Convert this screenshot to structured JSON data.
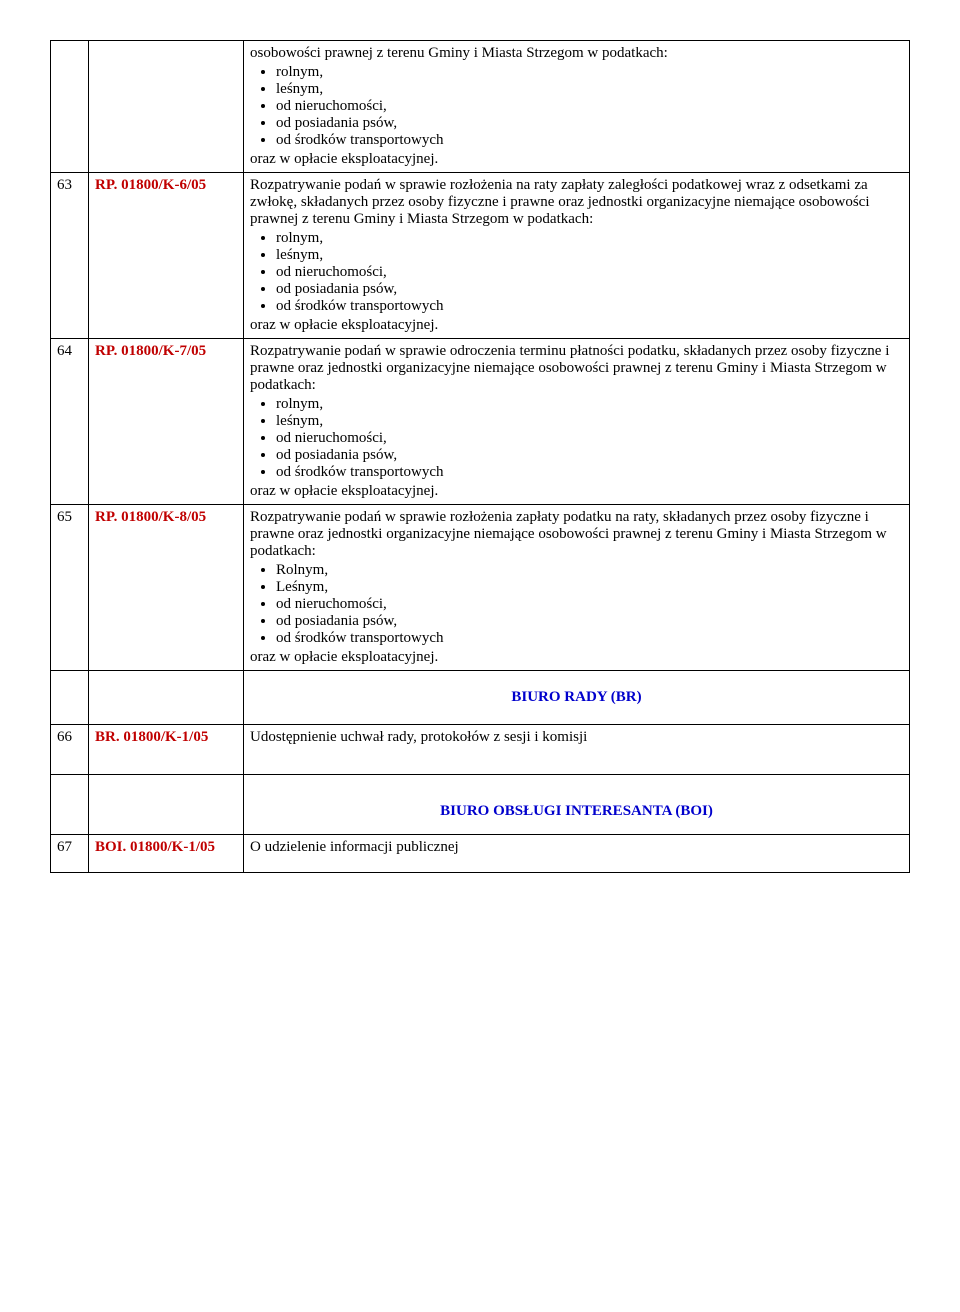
{
  "rows": [
    {
      "num": "",
      "code": "",
      "intro": "osobowości prawnej z terenu Gminy i Miasta Strzegom w podatkach:",
      "bullets": [
        "rolnym,",
        "leśnym,",
        "od nieruchomości,",
        "od posiadania psów,",
        "od środków transportowych"
      ],
      "outro": "oraz w opłacie eksploatacyjnej."
    },
    {
      "num": "63",
      "code": "RP. 01800/K-6/05",
      "intro": "Rozpatrywanie podań w sprawie rozłożenia na raty zapłaty zaległości podatkowej wraz z odsetkami za zwłokę, składanych przez osoby fizyczne i prawne oraz jednostki organizacyjne niemające osobowości prawnej z terenu Gminy i Miasta Strzegom w podatkach:",
      "bullets": [
        "rolnym,",
        "leśnym,",
        "od nieruchomości,",
        "od posiadania psów,",
        "od środków transportowych"
      ],
      "outro": "oraz w opłacie eksploatacyjnej."
    },
    {
      "num": "64",
      "code": "RP. 01800/K-7/05",
      "intro": "Rozpatrywanie podań w sprawie odroczenia terminu płatności podatku, składanych przez osoby fizyczne i prawne oraz jednostki organizacyjne niemające osobowości prawnej z terenu Gminy i Miasta Strzegom w podatkach:",
      "bullets": [
        "rolnym,",
        "leśnym,",
        "od nieruchomości,",
        "od posiadania psów,",
        "od środków transportowych"
      ],
      "outro": "oraz w opłacie eksploatacyjnej."
    },
    {
      "num": "65",
      "code": "RP. 01800/K-8/05",
      "intro": "Rozpatrywanie podań w sprawie rozłożenia zapłaty podatku na raty, składanych przez osoby fizyczne i prawne oraz jednostki organizacyjne niemające osobowości prawnej z terenu Gminy i Miasta Strzegom w podatkach:",
      "bullets": [
        "Rolnym,",
        "Leśnym,",
        "od nieruchomości,",
        "od posiadania psów,",
        "od środków transportowych"
      ],
      "outro": "oraz w opłacie eksploatacyjnej."
    }
  ],
  "section1": {
    "title": "BIURO RADY (BR)"
  },
  "row66": {
    "num": "66",
    "code": "BR. 01800/K-1/05",
    "desc": "Udostępnienie uchwał rady, protokołów z sesji i komisji"
  },
  "section2": {
    "title": "BIURO OBSŁUGI INTERESANTA (BOI)"
  },
  "row67": {
    "num": "67",
    "code": "BOI. 01800/K-1/05",
    "desc": "O udzielenie informacji publicznej"
  }
}
